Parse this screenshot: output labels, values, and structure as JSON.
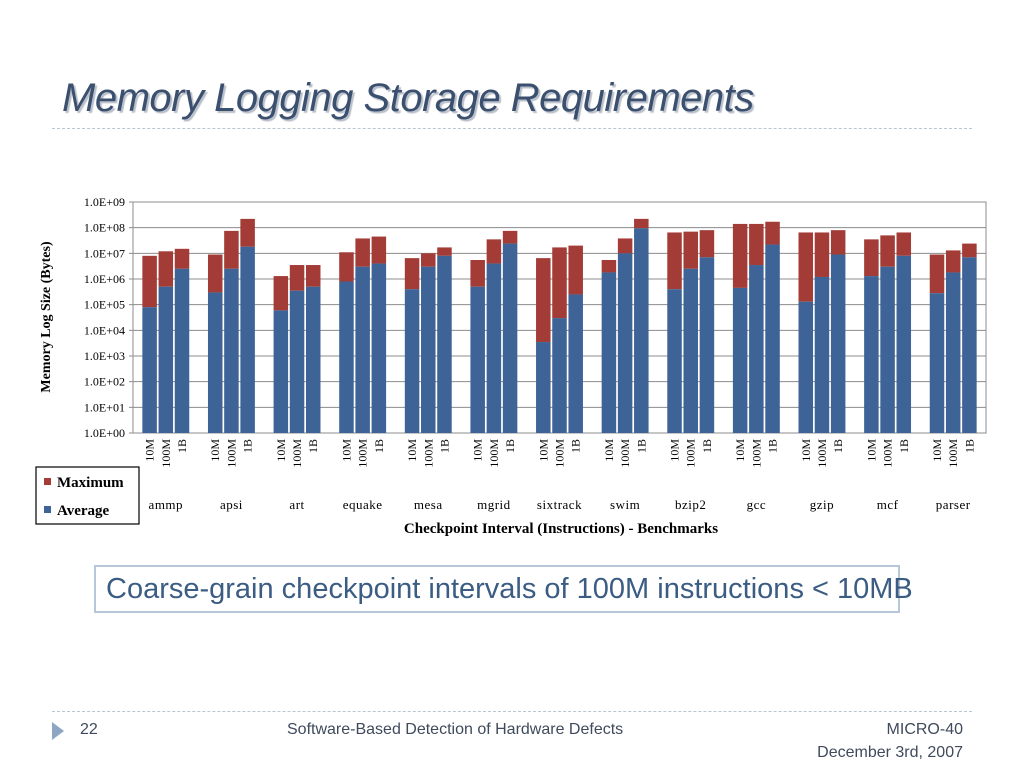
{
  "slide": {
    "title": "Memory Logging Storage Requirements",
    "callout": "Coarse-grain checkpoint intervals of 100M instructions < 10MB",
    "footer": {
      "page_number": "22",
      "center_text": "Software-Based Detection of Hardware Defects",
      "venue": "MICRO-40",
      "date": "December 3rd, 2007"
    }
  },
  "colors": {
    "maximum": "#a33b36",
    "average": "#3e6396",
    "title": "#3b4f6e",
    "callout_text": "#3b5c83"
  },
  "chart_data": {
    "type": "bar",
    "stacked": true,
    "log_scale": true,
    "xlabel": "Checkpoint Interval (Instructions) - Benchmarks",
    "ylabel": "Memory Log Size (Bytes)",
    "ylim": [
      1,
      1000000000
    ],
    "yticks": [
      "1.0E+00",
      "1.0E+01",
      "1.0E+02",
      "1.0E+03",
      "1.0E+04",
      "1.0E+05",
      "1.0E+06",
      "1.0E+07",
      "1.0E+08",
      "1.0E+09"
    ],
    "intervals": [
      "10M",
      "100M",
      "1B"
    ],
    "benchmarks": [
      "ammp",
      "apsi",
      "art",
      "equake",
      "mesa",
      "mgrid",
      "sixtrack",
      "swim",
      "bzip2",
      "gcc",
      "gzip",
      "mcf",
      "parser"
    ],
    "legend": {
      "position": "left",
      "entries": [
        "Maximum",
        "Average"
      ]
    },
    "series": [
      {
        "name": "Average",
        "values": [
          [
            80000,
            500000,
            2500000
          ],
          [
            300000,
            2500000,
            18000000
          ],
          [
            60000,
            350000,
            500000
          ],
          [
            800000,
            3000000,
            4000000
          ],
          [
            400000,
            3000000,
            8000000
          ],
          [
            500000,
            4000000,
            24000000
          ],
          [
            3500,
            30000,
            250000
          ],
          [
            1800000,
            10000000,
            95000000
          ],
          [
            400000,
            2500000,
            7000000
          ],
          [
            450000,
            3500000,
            22000000
          ],
          [
            130000,
            1200000,
            9000000
          ],
          [
            1300000,
            3000000,
            8000000
          ],
          [
            280000,
            1800000,
            7000000
          ]
        ]
      },
      {
        "name": "Maximum",
        "values": [
          [
            8000000,
            12000000,
            15000000
          ],
          [
            9000000,
            75000000,
            220000000
          ],
          [
            1300000,
            3500000,
            3500000
          ],
          [
            11000000,
            38000000,
            45000000
          ],
          [
            6500000,
            10000000,
            17000000
          ],
          [
            5500000,
            35000000,
            75000000
          ],
          [
            6500000,
            17000000,
            20000000
          ],
          [
            5500000,
            38000000,
            220000000
          ],
          [
            65000000,
            70000000,
            80000000
          ],
          [
            140000000,
            140000000,
            170000000
          ],
          [
            65000000,
            65000000,
            80000000
          ],
          [
            35000000,
            50000000,
            65000000
          ],
          [
            9000000,
            13000000,
            24000000
          ]
        ]
      }
    ]
  }
}
